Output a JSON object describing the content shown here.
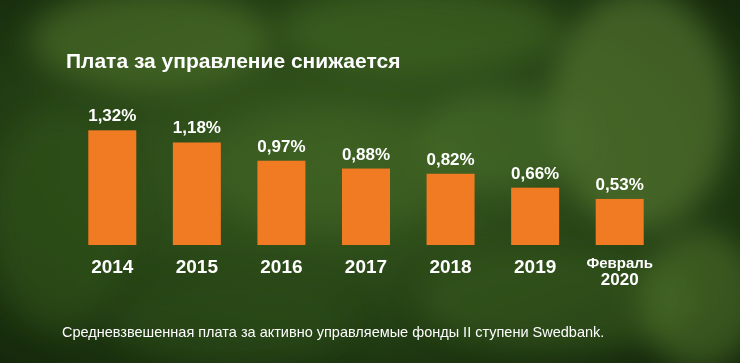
{
  "chart_data": {
    "type": "bar",
    "title": "Плата за управление снижается",
    "subtitle": "Средневзвешенная плата за активно управляемые фонды II ступени Swedbank.",
    "categories": [
      "2014",
      "2015",
      "2016",
      "2017",
      "2018",
      "2019",
      "Февраль 2020"
    ],
    "values": [
      1.32,
      1.18,
      0.97,
      0.88,
      0.82,
      0.66,
      0.53
    ],
    "value_labels": [
      "1,32%",
      "1,18%",
      "0,97%",
      "0,88%",
      "0,82%",
      "0,66%",
      "0,53%"
    ],
    "color": "#f07b22",
    "ylim": [
      0,
      1.6
    ],
    "data_labels": true,
    "tick_labels": "x",
    "grid": false
  }
}
